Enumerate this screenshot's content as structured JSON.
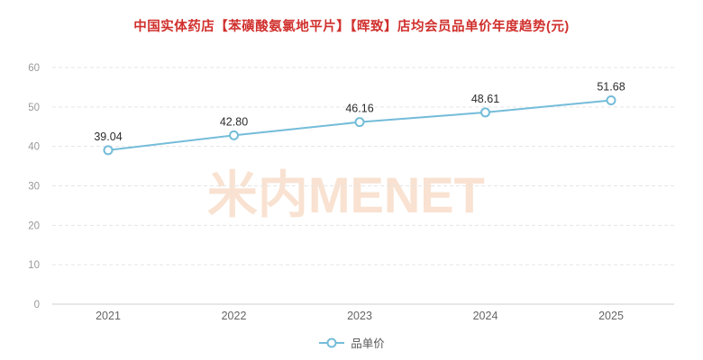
{
  "title": "中国实体药店【苯磺酸氨氯地平片】【晖致】店均会员品单价年度趋势(元)",
  "title_color": "#d0302d",
  "watermark": "米内MENET",
  "watermark_color": "#f8dcc6",
  "legend": {
    "label": "品单价"
  },
  "chart_data": {
    "type": "line",
    "title": "中国实体药店【苯磺酸氨氯地平片】【晖致】店均会员品单价年度趋势(元)",
    "categories": [
      "2021",
      "2022",
      "2023",
      "2024",
      "2025"
    ],
    "series": [
      {
        "name": "品单价",
        "values": [
          39.04,
          42.8,
          46.16,
          48.61,
          51.68
        ]
      }
    ],
    "xlabel": "",
    "ylabel": "",
    "ylim": [
      0,
      60
    ],
    "ytick_step": 10,
    "grid": true,
    "grid_style": "dashed",
    "legend_position": "bottom",
    "line_color": "#74bcd9",
    "marker": "hollow-circle",
    "label_color": "#2b2b2b"
  }
}
